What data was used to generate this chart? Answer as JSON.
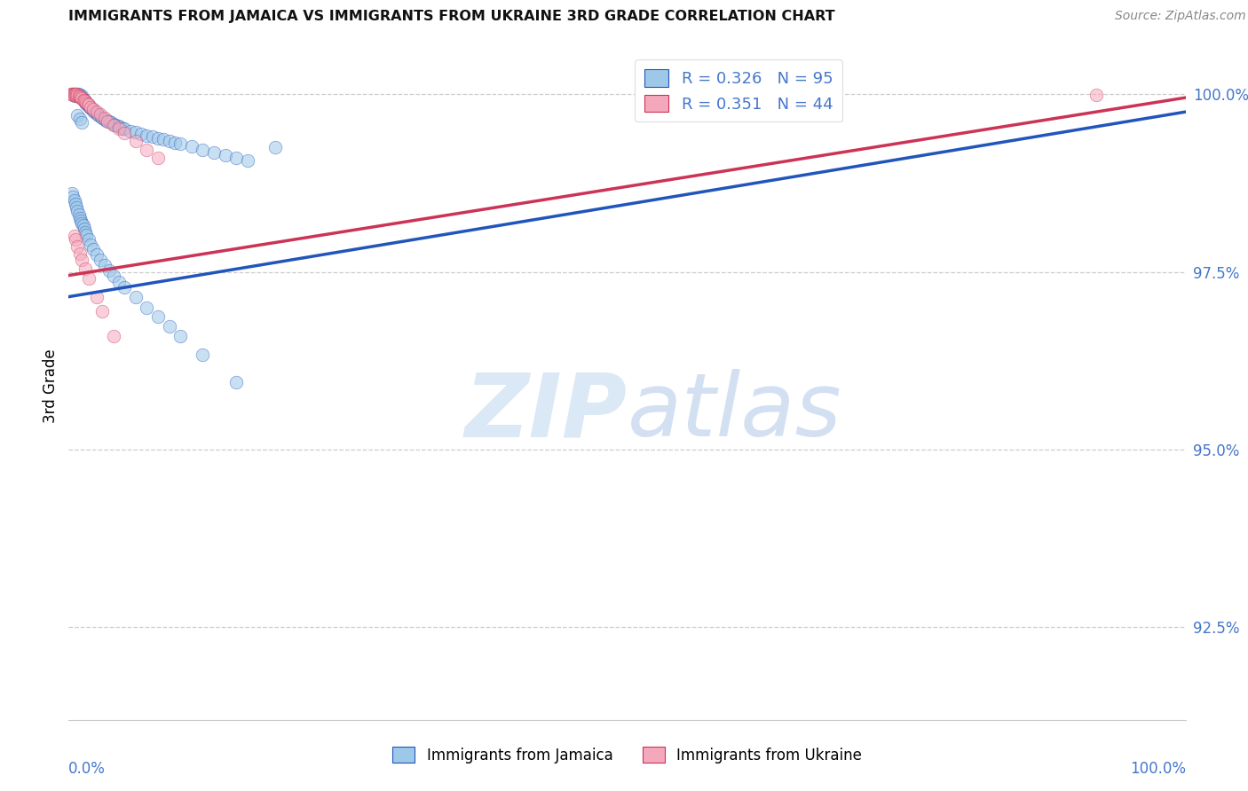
{
  "title": "IMMIGRANTS FROM JAMAICA VS IMMIGRANTS FROM UKRAINE 3RD GRADE CORRELATION CHART",
  "source": "Source: ZipAtlas.com",
  "ylabel": "3rd Grade",
  "ytick_labels": [
    "92.5%",
    "95.0%",
    "97.5%",
    "100.0%"
  ],
  "ytick_values": [
    0.925,
    0.95,
    0.975,
    1.0
  ],
  "xlim": [
    0.0,
    1.0
  ],
  "ylim": [
    0.912,
    1.006
  ],
  "legend_r_jamaica": "0.326",
  "legend_n_jamaica": "95",
  "legend_r_ukraine": "0.351",
  "legend_n_ukraine": "44",
  "color_jamaica": "#9EC8E8",
  "color_ukraine": "#F4A8BC",
  "color_trend_jamaica": "#2255BB",
  "color_trend_ukraine": "#CC3355",
  "color_axis_labels": "#4477CC",
  "grid_color": "#CCCCCC",
  "title_fontsize": 11.5,
  "source_fontsize": 10,
  "legend_fontsize": 13,
  "tick_fontsize": 12,
  "scatter_size": 110,
  "scatter_alpha": 0.55,
  "trend_linewidth": 2.5,
  "jam_x": [
    0.003,
    0.004,
    0.005,
    0.005,
    0.006,
    0.007,
    0.007,
    0.008,
    0.008,
    0.009,
    0.009,
    0.01,
    0.01,
    0.011,
    0.011,
    0.012,
    0.012,
    0.013,
    0.014,
    0.015,
    0.015,
    0.016,
    0.017,
    0.018,
    0.019,
    0.02,
    0.021,
    0.022,
    0.023,
    0.025,
    0.026,
    0.027,
    0.029,
    0.03,
    0.032,
    0.034,
    0.036,
    0.038,
    0.04,
    0.042,
    0.044,
    0.046,
    0.048,
    0.05,
    0.055,
    0.06,
    0.065,
    0.07,
    0.075,
    0.08,
    0.085,
    0.09,
    0.095,
    0.1,
    0.11,
    0.12,
    0.13,
    0.14,
    0.15,
    0.16,
    0.003,
    0.004,
    0.005,
    0.006,
    0.007,
    0.008,
    0.009,
    0.01,
    0.011,
    0.012,
    0.013,
    0.014,
    0.015,
    0.016,
    0.018,
    0.02,
    0.022,
    0.025,
    0.028,
    0.032,
    0.036,
    0.04,
    0.045,
    0.05,
    0.06,
    0.07,
    0.08,
    0.09,
    0.1,
    0.12,
    0.15,
    0.008,
    0.01,
    0.012,
    0.185
  ],
  "jam_y": [
    1.0,
    1.0,
    1.0,
    0.9998,
    1.0,
    1.0,
    0.9998,
    1.0,
    0.9998,
    1.0,
    0.9997,
    0.9998,
    0.9996,
    0.9998,
    0.9995,
    0.9997,
    0.9994,
    0.9993,
    0.9991,
    0.999,
    0.9988,
    0.9987,
    0.9985,
    0.9984,
    0.9982,
    0.998,
    0.9979,
    0.9977,
    0.9975,
    0.9973,
    0.9972,
    0.997,
    0.9968,
    0.9967,
    0.9964,
    0.9963,
    0.9961,
    0.996,
    0.9958,
    0.9957,
    0.9955,
    0.9954,
    0.9952,
    0.9951,
    0.9948,
    0.9946,
    0.9944,
    0.9942,
    0.994,
    0.9938,
    0.9936,
    0.9934,
    0.9932,
    0.993,
    0.9926,
    0.9922,
    0.9918,
    0.9914,
    0.991,
    0.9906,
    0.986,
    0.9855,
    0.985,
    0.9845,
    0.984,
    0.9835,
    0.983,
    0.9826,
    0.9822,
    0.9818,
    0.9815,
    0.981,
    0.9806,
    0.9802,
    0.9795,
    0.9788,
    0.9782,
    0.9774,
    0.9767,
    0.9759,
    0.9752,
    0.9745,
    0.9736,
    0.9728,
    0.9714,
    0.97,
    0.9687,
    0.9673,
    0.966,
    0.9634,
    0.9595,
    0.997,
    0.9965,
    0.996,
    0.9925
  ],
  "ukr_x": [
    0.002,
    0.003,
    0.004,
    0.004,
    0.005,
    0.005,
    0.006,
    0.007,
    0.007,
    0.008,
    0.009,
    0.009,
    0.01,
    0.011,
    0.012,
    0.013,
    0.014,
    0.015,
    0.016,
    0.017,
    0.018,
    0.02,
    0.022,
    0.025,
    0.028,
    0.032,
    0.035,
    0.04,
    0.045,
    0.05,
    0.06,
    0.07,
    0.08,
    0.005,
    0.006,
    0.008,
    0.01,
    0.012,
    0.015,
    0.018,
    0.025,
    0.03,
    0.04,
    0.92
  ],
  "ukr_y": [
    1.0,
    1.0,
    1.0,
    0.9999,
    1.0,
    0.9999,
    1.0,
    1.0,
    0.9998,
    0.9999,
    0.9998,
    0.9997,
    0.9996,
    0.9995,
    0.9994,
    0.9992,
    0.9991,
    0.999,
    0.9988,
    0.9987,
    0.9985,
    0.9982,
    0.9979,
    0.9975,
    0.9971,
    0.9966,
    0.9962,
    0.9956,
    0.9951,
    0.9945,
    0.9934,
    0.9922,
    0.991,
    0.98,
    0.9795,
    0.9785,
    0.9776,
    0.9767,
    0.9754,
    0.9741,
    0.9715,
    0.9695,
    0.966,
    0.9999
  ],
  "trend_jam_x0": 0.0,
  "trend_jam_x1": 1.0,
  "trend_jam_y0": 0.9715,
  "trend_jam_y1": 0.9975,
  "trend_ukr_x0": 0.0,
  "trend_ukr_x1": 1.0,
  "trend_ukr_y0": 0.9745,
  "trend_ukr_y1": 0.9995
}
